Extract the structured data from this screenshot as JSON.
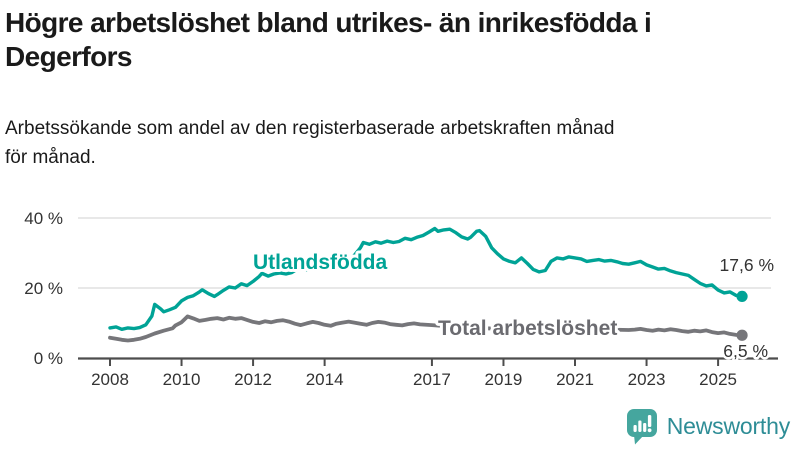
{
  "header": {
    "title": "Högre arbetslöshet bland utrikes- än inrikesfödda i\nDegerfors",
    "subtitle": "Arbetssökande som andel av den registerbaserade arbetskraften månad\nför månad."
  },
  "logo": {
    "text": "Newsworthy",
    "icon": "newsworthy-chart-bubble-icon",
    "icon_color": "#45a69e",
    "text_color": "#2e8d96"
  },
  "colors": {
    "axis": "#4d4d4d",
    "grid": "#d9d9d9",
    "tick_text": "#333333",
    "foreign_born_line": "#00a396",
    "total_line": "#76767a",
    "total_label": "#6b6b70",
    "value_label": "#333333"
  },
  "chart_data": {
    "type": "line",
    "title": "Högre arbetslöshet bland utrikes- än inrikesfödda i Degerfors",
    "subtitle": "Arbetssökande som andel av den registerbaserade arbetskraften månad för månad.",
    "xlabel": "",
    "ylabel": "",
    "x_range": [
      2008,
      2025.67
    ],
    "ylim": [
      0,
      43
    ],
    "grid": "horizontal",
    "legend_position": "inline-labels",
    "x_ticks": [
      {
        "value": 2008,
        "label": "2008"
      },
      {
        "value": 2010,
        "label": "2010"
      },
      {
        "value": 2012,
        "label": "2012"
      },
      {
        "value": 2014,
        "label": "2014"
      },
      {
        "value": 2017,
        "label": "2017"
      },
      {
        "value": 2019,
        "label": "2019"
      },
      {
        "value": 2021,
        "label": "2021"
      },
      {
        "value": 2023,
        "label": "2023"
      },
      {
        "value": 2025,
        "label": "2025"
      }
    ],
    "y_ticks": [
      {
        "value": 0,
        "label": "0 %"
      },
      {
        "value": 20,
        "label": "20 %"
      },
      {
        "value": 40,
        "label": "40 %"
      }
    ],
    "series": [
      {
        "name": "Utlandsfödda",
        "label": "Utlandsfödda",
        "end_label": "17,6 %",
        "end_value": 17.6,
        "color": "#00a396",
        "line_width": 3.4,
        "points": [
          [
            2008.0,
            8.6
          ],
          [
            2008.17,
            8.9
          ],
          [
            2008.33,
            8.2
          ],
          [
            2008.5,
            8.6
          ],
          [
            2008.67,
            8.4
          ],
          [
            2008.83,
            8.7
          ],
          [
            2009.0,
            9.5
          ],
          [
            2009.17,
            12.0
          ],
          [
            2009.25,
            15.3
          ],
          [
            2009.42,
            14.0
          ],
          [
            2009.5,
            13.2
          ],
          [
            2009.67,
            13.8
          ],
          [
            2009.83,
            14.5
          ],
          [
            2010.0,
            16.3
          ],
          [
            2010.17,
            17.3
          ],
          [
            2010.33,
            17.8
          ],
          [
            2010.5,
            18.9
          ],
          [
            2010.58,
            19.5
          ],
          [
            2010.75,
            18.4
          ],
          [
            2010.92,
            17.6
          ],
          [
            2011.0,
            18.1
          ],
          [
            2011.17,
            19.3
          ],
          [
            2011.33,
            20.3
          ],
          [
            2011.5,
            20.0
          ],
          [
            2011.67,
            21.2
          ],
          [
            2011.83,
            20.7
          ],
          [
            2012.0,
            21.9
          ],
          [
            2012.17,
            23.3
          ],
          [
            2012.25,
            24.2
          ],
          [
            2012.42,
            23.4
          ],
          [
            2012.58,
            24.0
          ],
          [
            2012.75,
            24.3
          ],
          [
            2012.92,
            24.0
          ],
          [
            2013.08,
            24.4
          ],
          [
            2013.25,
            25.5
          ],
          [
            2013.5,
            25.2
          ],
          [
            2013.75,
            26.0
          ],
          [
            2014.0,
            26.5
          ],
          [
            2014.25,
            27.2
          ],
          [
            2014.5,
            27.6
          ],
          [
            2014.75,
            28.3
          ],
          [
            2015.0,
            31.5
          ],
          [
            2015.08,
            33.0
          ],
          [
            2015.25,
            32.5
          ],
          [
            2015.42,
            33.2
          ],
          [
            2015.58,
            32.8
          ],
          [
            2015.75,
            33.4
          ],
          [
            2015.92,
            33.0
          ],
          [
            2016.08,
            33.3
          ],
          [
            2016.25,
            34.2
          ],
          [
            2016.42,
            33.8
          ],
          [
            2016.58,
            34.5
          ],
          [
            2016.75,
            35.0
          ],
          [
            2016.92,
            36.0
          ],
          [
            2017.08,
            37.0
          ],
          [
            2017.17,
            36.2
          ],
          [
            2017.33,
            36.6
          ],
          [
            2017.5,
            36.8
          ],
          [
            2017.67,
            35.8
          ],
          [
            2017.83,
            34.6
          ],
          [
            2018.0,
            34.0
          ],
          [
            2018.08,
            34.5
          ],
          [
            2018.25,
            36.2
          ],
          [
            2018.33,
            36.4
          ],
          [
            2018.5,
            34.8
          ],
          [
            2018.67,
            31.5
          ],
          [
            2018.83,
            29.8
          ],
          [
            2019.0,
            28.3
          ],
          [
            2019.17,
            27.6
          ],
          [
            2019.33,
            27.2
          ],
          [
            2019.5,
            28.6
          ],
          [
            2019.67,
            27.0
          ],
          [
            2019.83,
            25.3
          ],
          [
            2020.0,
            24.6
          ],
          [
            2020.17,
            25.0
          ],
          [
            2020.33,
            27.6
          ],
          [
            2020.5,
            28.6
          ],
          [
            2020.67,
            28.3
          ],
          [
            2020.83,
            28.9
          ],
          [
            2021.0,
            28.6
          ],
          [
            2021.17,
            28.3
          ],
          [
            2021.33,
            27.6
          ],
          [
            2021.5,
            27.9
          ],
          [
            2021.67,
            28.1
          ],
          [
            2021.83,
            27.7
          ],
          [
            2022.0,
            27.9
          ],
          [
            2022.17,
            27.5
          ],
          [
            2022.33,
            27.0
          ],
          [
            2022.5,
            26.8
          ],
          [
            2022.67,
            27.2
          ],
          [
            2022.83,
            27.6
          ],
          [
            2023.0,
            26.6
          ],
          [
            2023.17,
            26.0
          ],
          [
            2023.33,
            25.4
          ],
          [
            2023.5,
            25.6
          ],
          [
            2023.67,
            24.9
          ],
          [
            2023.83,
            24.4
          ],
          [
            2024.0,
            24.0
          ],
          [
            2024.17,
            23.6
          ],
          [
            2024.33,
            22.5
          ],
          [
            2024.5,
            21.3
          ],
          [
            2024.67,
            20.6
          ],
          [
            2024.83,
            20.9
          ],
          [
            2025.0,
            19.4
          ],
          [
            2025.17,
            18.6
          ],
          [
            2025.33,
            18.9
          ],
          [
            2025.5,
            17.9
          ],
          [
            2025.67,
            17.6
          ]
        ]
      },
      {
        "name": "Total arbetslöshet",
        "label": "Total arbetslöshet",
        "end_label": "6,5 %",
        "end_value": 6.5,
        "color": "#76767a",
        "line_width": 3.8,
        "points": [
          [
            2008.0,
            5.8
          ],
          [
            2008.17,
            5.5
          ],
          [
            2008.33,
            5.2
          ],
          [
            2008.5,
            5.0
          ],
          [
            2008.67,
            5.2
          ],
          [
            2008.83,
            5.5
          ],
          [
            2009.0,
            6.0
          ],
          [
            2009.25,
            7.0
          ],
          [
            2009.5,
            7.8
          ],
          [
            2009.75,
            8.5
          ],
          [
            2009.83,
            9.3
          ],
          [
            2010.0,
            10.2
          ],
          [
            2010.08,
            11.0
          ],
          [
            2010.17,
            11.9
          ],
          [
            2010.33,
            11.3
          ],
          [
            2010.5,
            10.6
          ],
          [
            2010.67,
            10.9
          ],
          [
            2010.83,
            11.2
          ],
          [
            2011.0,
            11.4
          ],
          [
            2011.17,
            11.0
          ],
          [
            2011.33,
            11.5
          ],
          [
            2011.5,
            11.2
          ],
          [
            2011.67,
            11.4
          ],
          [
            2011.83,
            10.9
          ],
          [
            2012.0,
            10.3
          ],
          [
            2012.17,
            10.0
          ],
          [
            2012.33,
            10.5
          ],
          [
            2012.5,
            10.2
          ],
          [
            2012.67,
            10.6
          ],
          [
            2012.83,
            10.8
          ],
          [
            2013.0,
            10.4
          ],
          [
            2013.17,
            9.8
          ],
          [
            2013.33,
            9.4
          ],
          [
            2013.5,
            9.9
          ],
          [
            2013.67,
            10.3
          ],
          [
            2013.83,
            10.0
          ],
          [
            2014.0,
            9.5
          ],
          [
            2014.17,
            9.2
          ],
          [
            2014.33,
            9.8
          ],
          [
            2014.5,
            10.1
          ],
          [
            2014.67,
            10.4
          ],
          [
            2014.83,
            10.1
          ],
          [
            2015.0,
            9.8
          ],
          [
            2015.17,
            9.5
          ],
          [
            2015.33,
            10.0
          ],
          [
            2015.5,
            10.3
          ],
          [
            2015.67,
            10.1
          ],
          [
            2015.83,
            9.7
          ],
          [
            2016.0,
            9.5
          ],
          [
            2016.17,
            9.3
          ],
          [
            2016.33,
            9.7
          ],
          [
            2016.5,
            9.9
          ],
          [
            2016.67,
            9.6
          ],
          [
            2017.0,
            9.4
          ],
          [
            2017.5,
            9.0
          ],
          [
            2018.0,
            8.7
          ],
          [
            2018.5,
            8.5
          ],
          [
            2019.0,
            8.3
          ],
          [
            2019.5,
            8.0
          ],
          [
            2020.0,
            8.2
          ],
          [
            2020.5,
            8.8
          ],
          [
            2021.0,
            8.6
          ],
          [
            2021.5,
            8.3
          ],
          [
            2022.0,
            8.1
          ],
          [
            2022.5,
            8.0
          ],
          [
            2022.67,
            8.1
          ],
          [
            2022.83,
            8.3
          ],
          [
            2023.0,
            8.0
          ],
          [
            2023.17,
            7.8
          ],
          [
            2023.33,
            8.1
          ],
          [
            2023.5,
            7.9
          ],
          [
            2023.67,
            8.2
          ],
          [
            2023.83,
            8.0
          ],
          [
            2024.0,
            7.7
          ],
          [
            2024.17,
            7.5
          ],
          [
            2024.33,
            7.8
          ],
          [
            2024.5,
            7.6
          ],
          [
            2024.67,
            7.9
          ],
          [
            2024.83,
            7.4
          ],
          [
            2025.0,
            7.1
          ],
          [
            2025.17,
            7.3
          ],
          [
            2025.33,
            6.9
          ],
          [
            2025.5,
            6.6
          ],
          [
            2025.67,
            6.5
          ]
        ]
      }
    ]
  }
}
